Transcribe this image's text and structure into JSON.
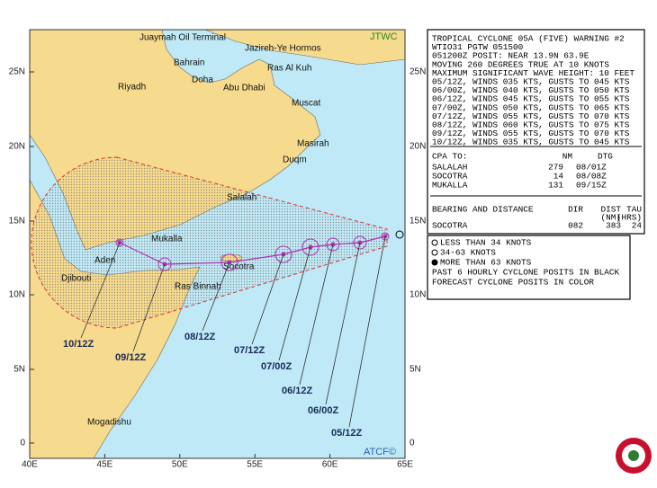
{
  "header": {
    "agency": "JTWC",
    "footer_agency": "ATCF©"
  },
  "map": {
    "lat_ticks": [
      "25N",
      "20N",
      "15N",
      "10N",
      "5N",
      "0"
    ],
    "lon_ticks": [
      "40E",
      "45E",
      "50E",
      "55E",
      "60E",
      "65E"
    ],
    "places": [
      "Juaymah Oil Terminal",
      "Jazireh-Ye Hormos",
      "Bahrain",
      "Ras Al Kuh",
      "Riyadh",
      "Doha",
      "Abu Dhabi",
      "Muscat",
      "Masirah",
      "Duqm",
      "Salalah",
      "Mukalla",
      "Aden",
      "Socotra",
      "Djibouti",
      "Ras Binnah",
      "Mogadishu"
    ],
    "track_labels": [
      "05/12Z",
      "06/00Z",
      "06/12Z",
      "07/00Z",
      "07/12Z",
      "08/12Z",
      "09/12Z",
      "10/12Z"
    ]
  },
  "warning": {
    "lines": [
      "TROPICAL CYCLONE 05A (FIVE) WARNING #2",
      "WTIO31 PGTW 051500",
      "051200Z POSIT: NEAR 13.9N 63.9E",
      "MOVING 260 DEGREES TRUE AT 10 KNOTS",
      "MAXIMUM SIGNIFICANT WAVE HEIGHT: 10 FEET",
      "05/12Z, WINDS 035 KTS, GUSTS TO 045 KTS",
      "06/00Z, WINDS 040 KTS, GUSTS TO 050 KTS",
      "06/12Z, WINDS 045 KTS, GUSTS TO 055 KTS",
      "07/00Z, WINDS 050 KTS, GUSTS TO 065 KTS",
      "07/12Z, WINDS 055 KTS, GUSTS TO 070 KTS",
      "08/12Z, WINDS 060 KTS, GUSTS TO 075 KTS",
      "09/12Z, WINDS 055 KTS, GUSTS TO 070 KTS",
      "10/12Z, WINDS 035 KTS, GUSTS TO 045 KTS"
    ]
  },
  "cpa": {
    "title": "CPA TO:",
    "columns": [
      "NM",
      "DTG"
    ],
    "rows": [
      [
        "SALALAH",
        "279",
        "08/01Z"
      ],
      [
        "SOCOTRA",
        "14",
        "08/08Z"
      ],
      [
        "MUKALLA",
        "131",
        "09/15Z"
      ]
    ]
  },
  "bearing": {
    "title": "BEARING AND DISTANCE",
    "columns": [
      [
        "DIR"
      ],
      [
        "DIST",
        "(NM)"
      ],
      [
        "TAU",
        "(HRS)"
      ]
    ],
    "rows": [
      [
        "SOCOTRA",
        "082",
        "383",
        "24"
      ]
    ]
  },
  "legend": {
    "items": [
      "LESS THAN 34 KNOTS",
      "34-63 KNOTS",
      "MORE THAN 63 KNOTS"
    ],
    "notes": [
      "PAST 6 HOURLY CYCLONE POSITS IN BLACK",
      "FORECAST CYCLONE POSITS IN COLOR"
    ]
  }
}
